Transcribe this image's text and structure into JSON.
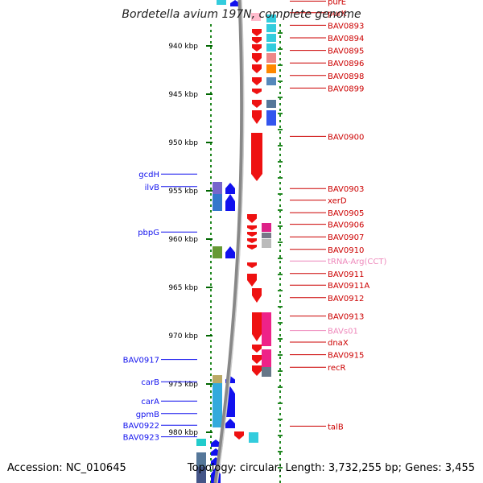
{
  "title": "Bordetella avium 197N, complete genome",
  "footer": {
    "accession": "Accession: NC_010645",
    "stats": "Topology: circular; Length: 3,732,255 bp; Genes: 3,455"
  },
  "ruler": {
    "ticks": [
      {
        "kbp": 940,
        "label": "940 kbp"
      },
      {
        "kbp": 945,
        "label": "945 kbp"
      },
      {
        "kbp": 950,
        "label": "950 kbp"
      },
      {
        "kbp": 955,
        "label": "955 kbp"
      },
      {
        "kbp": 960,
        "label": "960 kbp"
      },
      {
        "kbp": 965,
        "label": "965 kbp"
      },
      {
        "kbp": 970,
        "label": "970 kbp"
      },
      {
        "kbp": 975,
        "label": "975 kbp"
      },
      {
        "kbp": 980,
        "label": "980 kbp"
      }
    ]
  },
  "colors": {
    "reverse_strand": "#ee1111",
    "forward_strand": "#1111ee",
    "reverse_label": "#cc0000",
    "forward_label": "#0000bb",
    "rna_label": "#ee88bb",
    "backbone": "#888888",
    "ruler_dots": "#228822"
  },
  "genes": {
    "left": [
      {
        "name": "gcdH",
        "kbp": 955.1,
        "color": "#1111ee"
      },
      {
        "name": "ilvB",
        "kbp": 956.4,
        "color": "#1111ee"
      },
      {
        "name": "pbpG",
        "kbp": 961.1,
        "color": "#1111ee"
      },
      {
        "name": "BAV0917",
        "kbp": 974.3,
        "color": "#1111ee"
      },
      {
        "name": "carB",
        "kbp": 976.6,
        "color": "#1111ee"
      },
      {
        "name": "carA",
        "kbp": 978.6,
        "color": "#1111ee"
      },
      {
        "name": "gpmB",
        "kbp": 979.9,
        "color": "#1111ee"
      },
      {
        "name": "BAV0922",
        "kbp": 981.1,
        "color": "#1111ee"
      },
      {
        "name": "BAV0923",
        "kbp": 982.3,
        "color": "#1111ee"
      }
    ],
    "right": [
      {
        "name": "purE",
        "kbp": 937.2,
        "color": "#cc0000"
      },
      {
        "name": "purK",
        "kbp": 938.4,
        "color": "#cc0000"
      },
      {
        "name": "BAV0893",
        "kbp": 939.7,
        "color": "#cc0000"
      },
      {
        "name": "BAV0894",
        "kbp": 941.0,
        "color": "#cc0000"
      },
      {
        "name": "BAV0895",
        "kbp": 942.3,
        "color": "#cc0000"
      },
      {
        "name": "BAV0896",
        "kbp": 943.6,
        "color": "#cc0000"
      },
      {
        "name": "BAV0898",
        "kbp": 944.9,
        "color": "#cc0000"
      },
      {
        "name": "BAV0899",
        "kbp": 946.2,
        "color": "#cc0000"
      },
      {
        "name": "BAV0900",
        "kbp": 951.2,
        "color": "#cc0000"
      },
      {
        "name": "BAV0903",
        "kbp": 956.6,
        "color": "#cc0000"
      },
      {
        "name": "xerD",
        "kbp": 957.8,
        "color": "#cc0000"
      },
      {
        "name": "BAV0905",
        "kbp": 959.1,
        "color": "#cc0000"
      },
      {
        "name": "BAV0906",
        "kbp": 960.3,
        "color": "#cc0000"
      },
      {
        "name": "BAV0907",
        "kbp": 961.6,
        "color": "#cc0000"
      },
      {
        "name": "BAV0910",
        "kbp": 962.9,
        "color": "#cc0000"
      },
      {
        "name": "tRNA-Arg(CCT)",
        "kbp": 964.1,
        "color": "#ee88bb"
      },
      {
        "name": "BAV0911",
        "kbp": 965.4,
        "color": "#cc0000"
      },
      {
        "name": "BAV0911A",
        "kbp": 966.6,
        "color": "#cc0000"
      },
      {
        "name": "BAV0912",
        "kbp": 967.9,
        "color": "#cc0000"
      },
      {
        "name": "BAV0913",
        "kbp": 969.8,
        "color": "#cc0000"
      },
      {
        "name": "BAVs01",
        "kbp": 971.3,
        "color": "#ee88bb"
      },
      {
        "name": "dnaX",
        "kbp": 972.5,
        "color": "#cc0000"
      },
      {
        "name": "BAV0915",
        "kbp": 973.8,
        "color": "#cc0000"
      },
      {
        "name": "recR",
        "kbp": 975.1,
        "color": "#cc0000"
      },
      {
        "name": "talB",
        "kbp": 981.2,
        "color": "#cc0000"
      }
    ]
  }
}
